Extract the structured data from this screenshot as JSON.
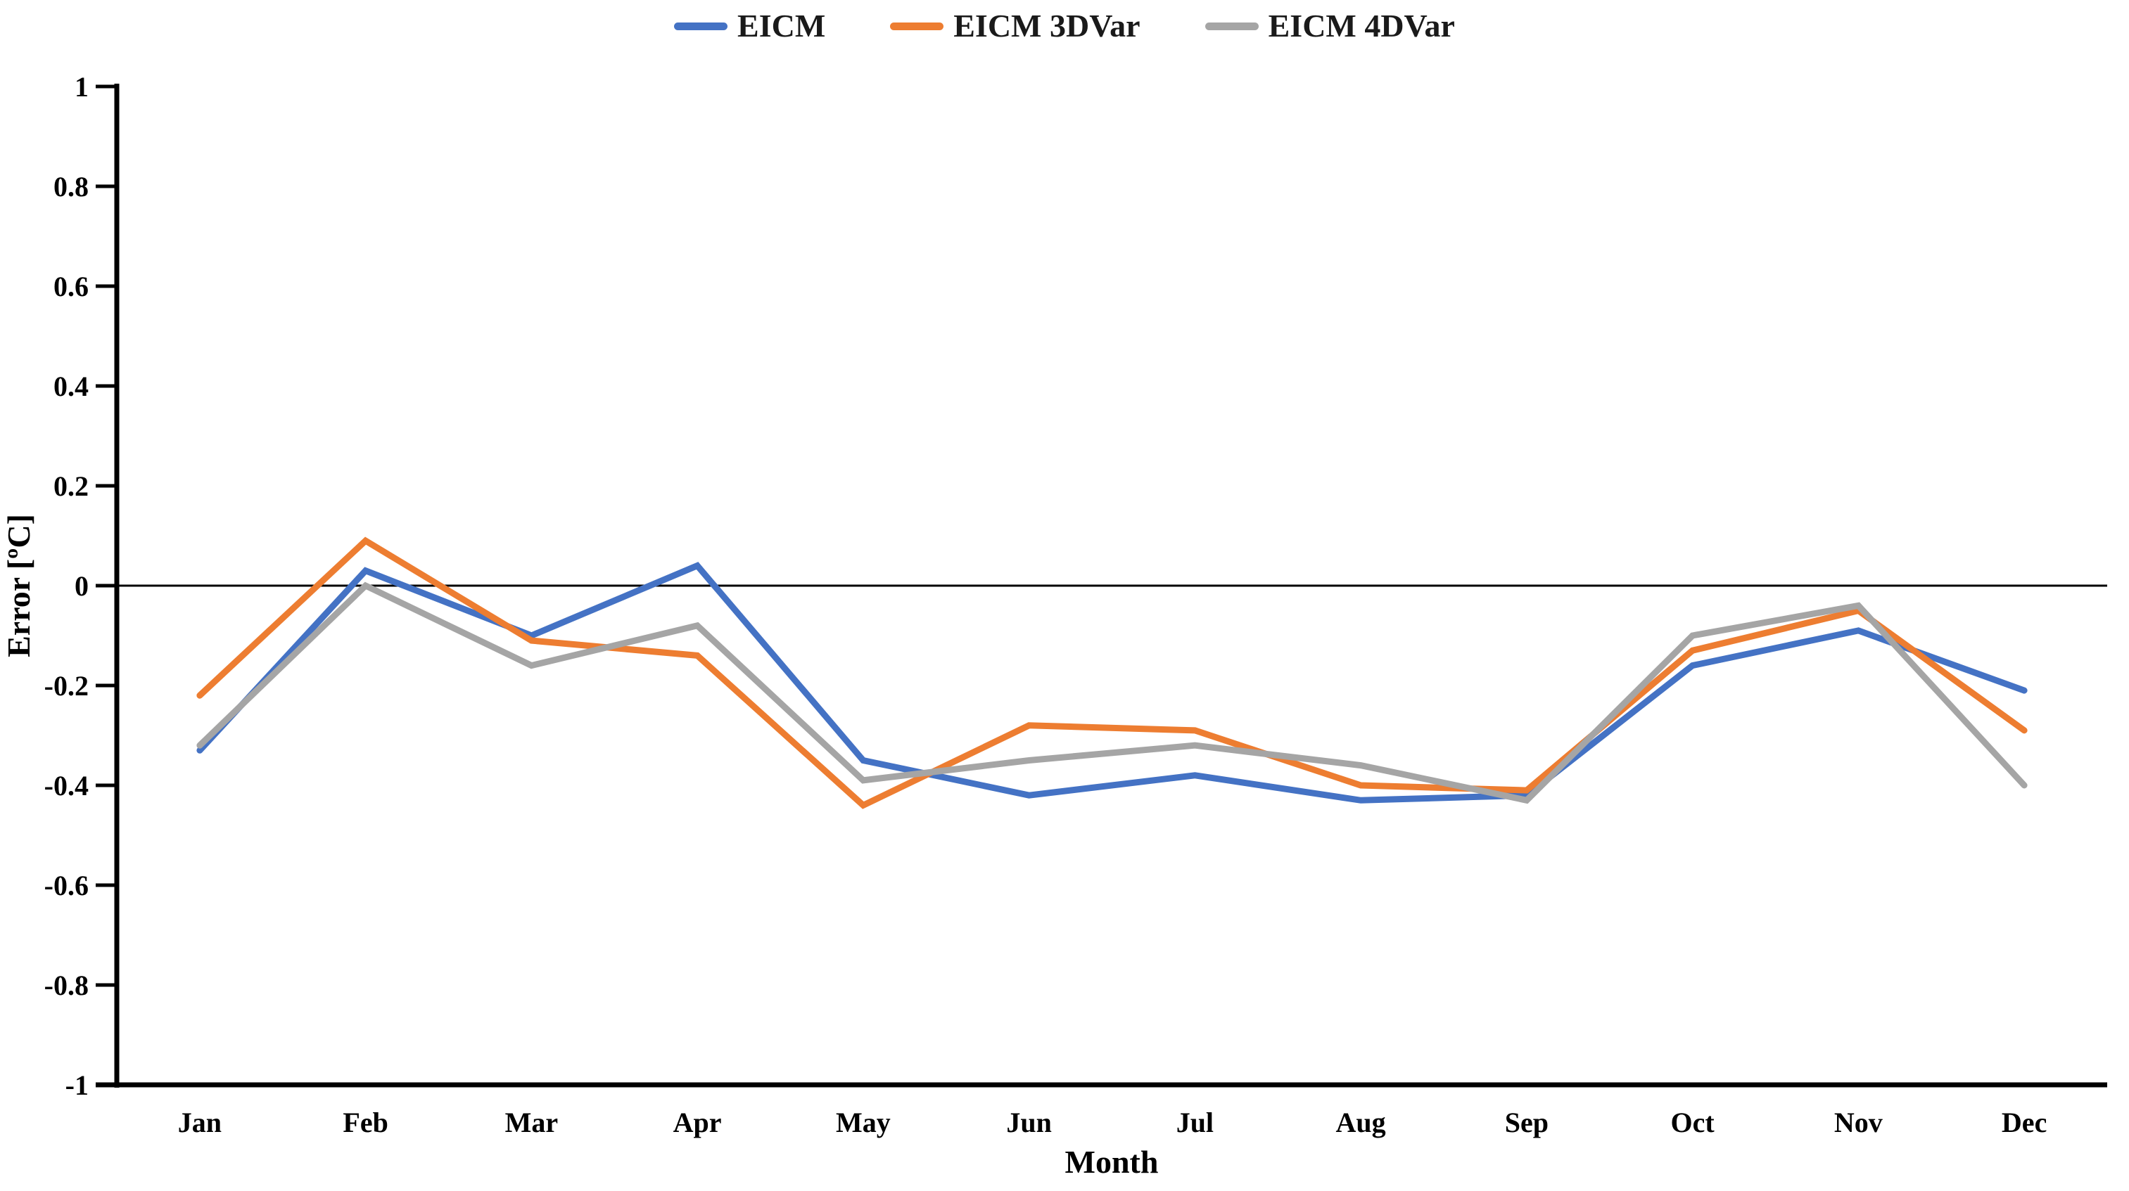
{
  "legend": {
    "items": [
      {
        "label": "EICM",
        "color": "#4472C4"
      },
      {
        "label": "EICM 3DVar",
        "color": "#ED7D31"
      },
      {
        "label": "EICM 4DVar",
        "color": "#A5A5A5"
      }
    ]
  },
  "chart_data": {
    "type": "line",
    "title": "",
    "xlabel": "Month",
    "ylabel": "Error [ºC]",
    "ylim": [
      -1,
      1
    ],
    "ytick_step": 0.2,
    "ytick_labels": [
      "-1",
      "-0.8",
      "-0.6",
      "-0.4",
      "-0.2",
      "0",
      "0.2",
      "0.4",
      "0.6",
      "0.8",
      "1"
    ],
    "grid": false,
    "legend_position": "top-center",
    "zero_line": true,
    "axis_color": "#000000",
    "categories": [
      "Jan",
      "Feb",
      "Mar",
      "Apr",
      "May",
      "Jun",
      "Jul",
      "Aug",
      "Sep",
      "Oct",
      "Nov",
      "Dec"
    ],
    "series": [
      {
        "name": "EICM",
        "color": "#4472C4",
        "values": [
          -0.33,
          0.03,
          -0.1,
          0.04,
          -0.35,
          -0.42,
          -0.38,
          -0.43,
          -0.42,
          -0.16,
          -0.09,
          -0.21
        ]
      },
      {
        "name": "EICM 3DVar",
        "color": "#ED7D31",
        "values": [
          -0.22,
          0.09,
          -0.11,
          -0.14,
          -0.44,
          -0.28,
          -0.29,
          -0.4,
          -0.41,
          -0.13,
          -0.05,
          -0.29
        ]
      },
      {
        "name": "EICM 4DVar",
        "color": "#A5A5A5",
        "values": [
          -0.32,
          0.0,
          -0.16,
          -0.08,
          -0.39,
          -0.35,
          -0.32,
          -0.36,
          -0.43,
          -0.1,
          -0.04,
          -0.4
        ]
      }
    ]
  }
}
